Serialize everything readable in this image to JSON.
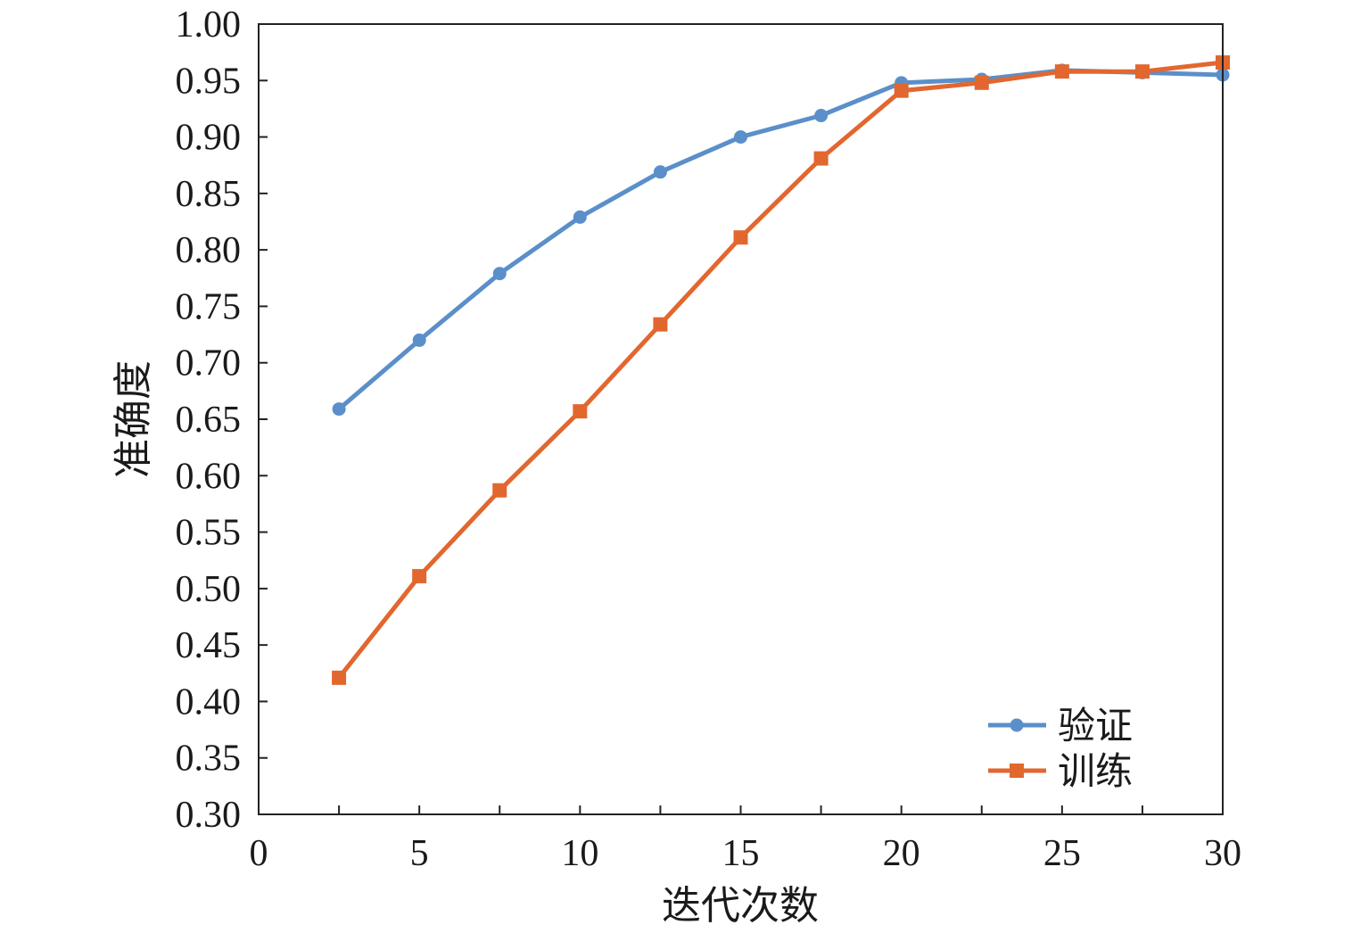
{
  "chart_data": {
    "type": "line",
    "xlabel": "迭代次数",
    "ylabel": "准确度",
    "xlim": [
      0,
      30
    ],
    "ylim": [
      0.3,
      1.0
    ],
    "xticks": [
      0,
      5,
      10,
      15,
      20,
      25,
      30
    ],
    "xtick_labels": [
      "0",
      "5",
      "10",
      "15",
      "20",
      "25",
      "30"
    ],
    "yticks": [
      0.3,
      0.35,
      0.4,
      0.45,
      0.5,
      0.55,
      0.6,
      0.65,
      0.7,
      0.75,
      0.8,
      0.85,
      0.9,
      0.95,
      1.0
    ],
    "ytick_labels": [
      "0.30",
      "0.35",
      "0.40",
      "0.45",
      "0.50",
      "0.55",
      "0.60",
      "0.65",
      "0.70",
      "0.75",
      "0.80",
      "0.85",
      "0.90",
      "0.95",
      "1.00"
    ],
    "grid": false,
    "legend_position": "bottom-right",
    "x": [
      2.5,
      5,
      7.5,
      10,
      12.5,
      15,
      17.5,
      20,
      22.5,
      25,
      27.5,
      30
    ],
    "series": [
      {
        "name": "验证",
        "marker": "circle",
        "color": "#5b8fc9",
        "values": [
          0.659,
          0.72,
          0.779,
          0.829,
          0.869,
          0.9,
          0.919,
          0.948,
          0.951,
          0.959,
          0.957,
          0.955
        ]
      },
      {
        "name": "训练",
        "marker": "square",
        "color": "#e2672f",
        "values": [
          0.421,
          0.511,
          0.587,
          0.657,
          0.734,
          0.811,
          0.881,
          0.941,
          0.948,
          0.958,
          0.958,
          0.966
        ]
      }
    ]
  }
}
